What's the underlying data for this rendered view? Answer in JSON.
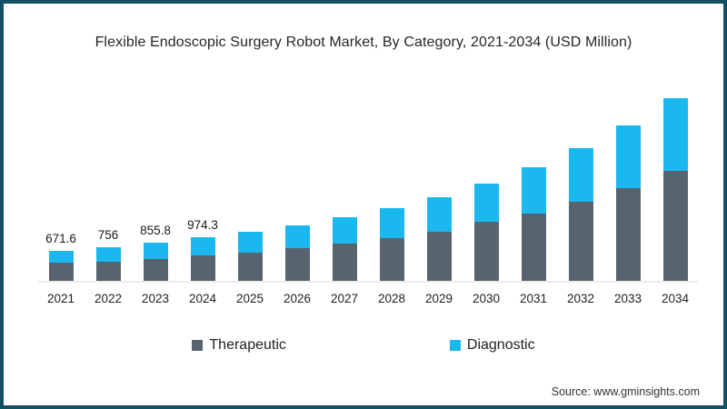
{
  "frame": {
    "border_color": "#124f63",
    "background": "#ffffff"
  },
  "chart": {
    "title": "Flexible Endoscopic Surgery Robot Market, By Category, 2021-2034 (USD Million)"
  },
  "legend": {
    "items": [
      {
        "label": "Therapeutic",
        "color": "#57636f"
      },
      {
        "label": "Diagnostic",
        "color": "#1ab8ee"
      }
    ]
  },
  "source": "Source: www.gminsights.com",
  "chart_data": {
    "type": "bar",
    "stacked": true,
    "unit": "USD Million",
    "title": "Flexible Endoscopic Surgery Robot Market, By Category, 2021-2034 (USD Million)",
    "xlabel": "",
    "ylabel": "",
    "categories": [
      "2021",
      "2022",
      "2023",
      "2024",
      "2025",
      "2026",
      "2027",
      "2028",
      "2029",
      "2030",
      "2031",
      "2032",
      "2033",
      "2034"
    ],
    "series": [
      {
        "name": "Therapeutic",
        "color": "#57636f",
        "values": [
          410,
          434,
          492,
          560,
          620,
          725,
          830,
          955,
          1100,
          1310,
          1510,
          1770,
          2080,
          2460
        ]
      },
      {
        "name": "Diagnostic",
        "color": "#1ab8ee",
        "values": [
          261.6,
          322,
          363.8,
          414.3,
          480,
          510,
          590,
          665,
          770,
          870,
          1030,
          1200,
          1395,
          1630
        ]
      }
    ],
    "totals": [
      671.6,
      756,
      855.8,
      974.3,
      1100,
      1235,
      1420,
      1620,
      1870,
      2180,
      2540,
      2970,
      3475,
      4090
    ],
    "data_labels": [
      "671.6",
      "756",
      "855.8",
      "974.3",
      null,
      null,
      null,
      null,
      null,
      null,
      null,
      null,
      null,
      null
    ],
    "ylim": [
      0,
      4890
    ],
    "grid": false,
    "legend_position": "bottom",
    "axis": {
      "baseline_color": "#ececec",
      "tick_label_color": "#1f1f1f"
    }
  }
}
